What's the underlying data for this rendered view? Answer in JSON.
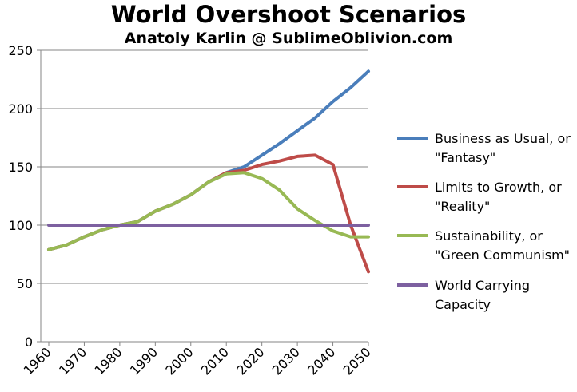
{
  "chart_data": {
    "type": "line",
    "title": "World Overshoot Scenarios",
    "subtitle": "Anatoly Karlin @ SublimeOblivion.com",
    "xlabel": "",
    "ylabel": "",
    "ylim": [
      0,
      250
    ],
    "yticks": [
      "0",
      "50",
      "100",
      "150",
      "200",
      "250"
    ],
    "xticks": [
      "1960",
      "1970",
      "1980",
      "1990",
      "2000",
      "2010",
      "2020",
      "2030",
      "2040",
      "2050"
    ],
    "x": [
      1960,
      1965,
      1970,
      1975,
      1980,
      1985,
      1990,
      1995,
      2000,
      2005,
      2010,
      2015,
      2020,
      2025,
      2030,
      2035,
      2040,
      2045,
      2050
    ],
    "grid": "horizontal",
    "legend_position": "right",
    "series": [
      {
        "name": "Business as Usual, or \"Fantasy\"",
        "legend_lines": [
          "Business as Usual, or",
          "\"Fantasy\""
        ],
        "color": "#4a7ebb",
        "values": [
          79,
          83,
          90,
          96,
          100,
          103,
          112,
          118,
          126,
          137,
          145,
          150,
          160,
          170,
          181,
          192,
          206,
          218,
          232
        ]
      },
      {
        "name": "Limits to Growth, or \"Reality\"",
        "legend_lines": [
          "Limits to Growth, or",
          "\"Reality\""
        ],
        "color": "#be4b48",
        "values": [
          79,
          83,
          90,
          96,
          100,
          103,
          112,
          118,
          126,
          137,
          145,
          147,
          152,
          155,
          159,
          160,
          152,
          100,
          60
        ]
      },
      {
        "name": "Sustainability, or \"Green Communism\"",
        "legend_lines": [
          "Sustainability, or",
          "\"Green Communism\""
        ],
        "color": "#98b954",
        "values": [
          79,
          83,
          90,
          96,
          100,
          103,
          112,
          118,
          126,
          137,
          144,
          145,
          140,
          130,
          114,
          104,
          95,
          90,
          90
        ]
      },
      {
        "name": "World Carrying Capacity",
        "legend_lines": [
          "World Carrying",
          "Capacity"
        ],
        "color": "#7d60a0",
        "values": [
          100,
          100,
          100,
          100,
          100,
          100,
          100,
          100,
          100,
          100,
          100,
          100,
          100,
          100,
          100,
          100,
          100,
          100,
          100
        ]
      }
    ]
  }
}
